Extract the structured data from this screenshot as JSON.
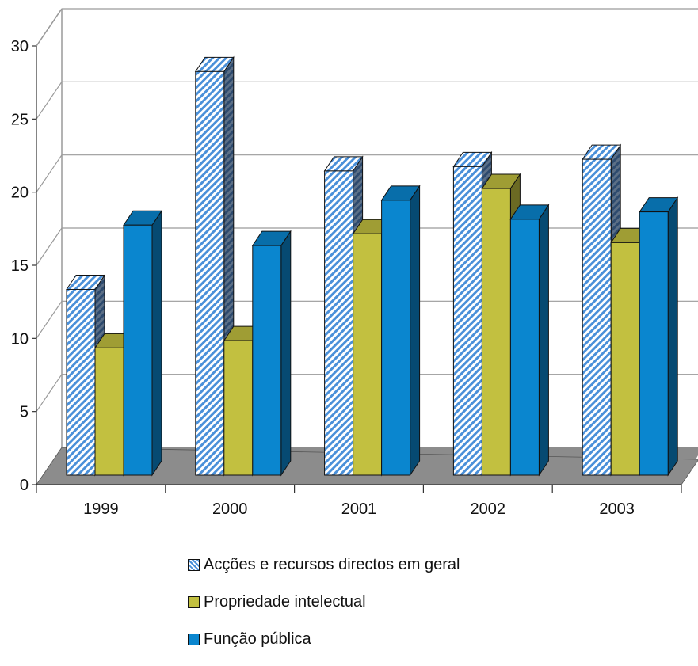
{
  "chart_data": {
    "type": "bar",
    "categories": [
      "1999",
      "2000",
      "2001",
      "2002",
      "2003"
    ],
    "series": [
      {
        "name": "Acções e recursos directos em geral",
        "values": [
          12.7,
          27.6,
          20.8,
          21.1,
          21.6
        ],
        "color": "#4a90d9",
        "pattern": "diagonal-hatch"
      },
      {
        "name": "Propriedade intelectual",
        "values": [
          8.7,
          9.2,
          16.5,
          19.6,
          15.9
        ],
        "color": "#c2c040",
        "pattern": "solid"
      },
      {
        "name": "Função pública",
        "values": [
          17.1,
          15.7,
          18.8,
          17.5,
          18.0
        ],
        "color": "#0a86cf",
        "pattern": "solid"
      }
    ],
    "yticks": [
      "0",
      "5",
      "10",
      "15",
      "20",
      "25",
      "30"
    ],
    "ylim": [
      0,
      30
    ],
    "grid": true,
    "style": "3d-clustered-column",
    "legend": "bottom",
    "title": "",
    "xlabel": "",
    "ylabel": ""
  }
}
